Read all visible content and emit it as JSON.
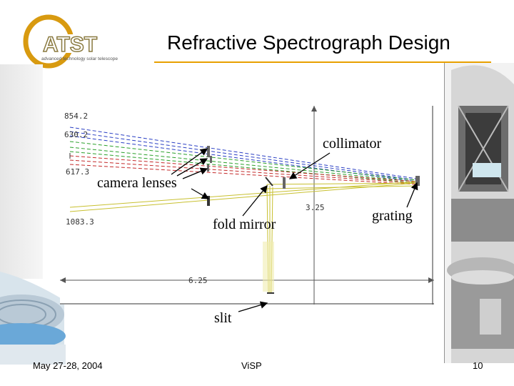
{
  "slide": {
    "title": "Refractive Spectrograph Design",
    "logo_text": "ATST",
    "logo_tagline": "advanced technology solar telescope"
  },
  "diagram": {
    "labels": {
      "collimator": "collimator",
      "camera_lenses": "camera lenses",
      "fold_mirror": "fold mirror",
      "grating": "grating",
      "slit": "slit"
    },
    "ray_values": [
      "854.2",
      "630.2",
      "617.3",
      "1083.3"
    ],
    "scale_label": "6.25",
    "dim_label": "3.25"
  },
  "footer": {
    "date": "May 27-28, 2004",
    "center": "ViSP",
    "page": "10"
  },
  "colors": {
    "accent": "#e8a000",
    "ray_blue": "#2a3fc4",
    "ray_green": "#2aa02a",
    "ray_red": "#c42a2a",
    "ray_yellow": "#c8c030"
  }
}
